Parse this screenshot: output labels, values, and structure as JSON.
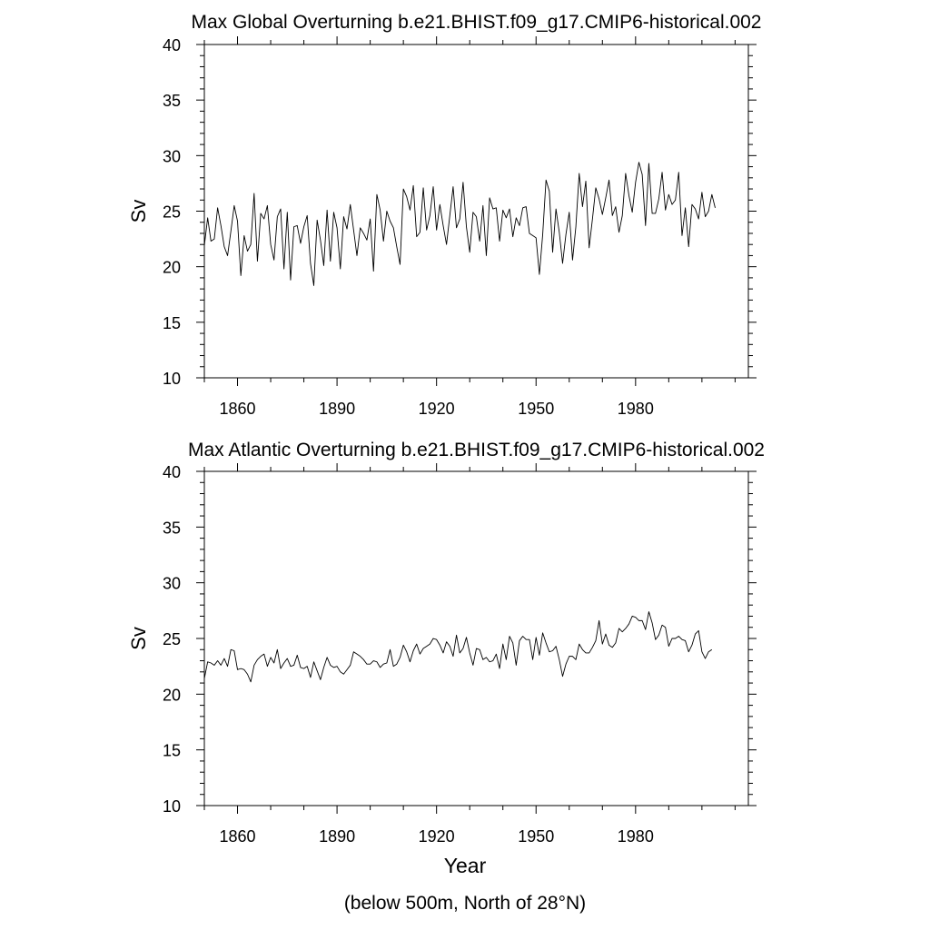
{
  "chart_data": [
    {
      "type": "line",
      "title": "Max Global Overturning b.e21.BHIST.f09_g17.CMIP6-historical.002",
      "xlabel": "",
      "ylabel": "Sv",
      "xlim": [
        1850,
        2014
      ],
      "ylim": [
        10,
        40
      ],
      "xticks": [
        1860,
        1890,
        1920,
        1950,
        1980
      ],
      "yticks": [
        10,
        15,
        20,
        25,
        30,
        35,
        40
      ],
      "grid": false,
      "x_start": 1850,
      "x_step": 1,
      "series": [
        {
          "name": "Max Global Overturning",
          "color": "#000000",
          "values": [
            21.9,
            24.4,
            22.3,
            22.5,
            25.3,
            23.7,
            21.8,
            21.0,
            23.2,
            25.5,
            24.1,
            19.2,
            22.8,
            21.4,
            22.0,
            26.6,
            20.5,
            24.8,
            24.3,
            25.5,
            22.0,
            20.6,
            24.5,
            25.2,
            19.8,
            24.9,
            18.8,
            23.6,
            23.7,
            22.1,
            23.6,
            24.6,
            20.3,
            18.3,
            24.2,
            22.4,
            20.1,
            25.1,
            20.5,
            24.9,
            23.5,
            19.8,
            24.5,
            23.4,
            25.6,
            23.3,
            21.0,
            23.5,
            23.0,
            22.4,
            24.3,
            19.6,
            26.5,
            25.1,
            22.3,
            25.0,
            24.1,
            23.5,
            21.8,
            20.2,
            27.0,
            26.3,
            25.1,
            27.3,
            22.7,
            23.1,
            27.1,
            23.3,
            24.6,
            27.2,
            23.3,
            25.6,
            23.7,
            22.0,
            24.6,
            27.2,
            23.5,
            24.3,
            27.6,
            23.6,
            21.3,
            24.9,
            24.5,
            22.3,
            25.5,
            21.0,
            26.2,
            25.2,
            25.3,
            22.3,
            25.1,
            24.4,
            25.2,
            22.7,
            24.4,
            23.7,
            25.3,
            25.4,
            23.0,
            22.8,
            22.6,
            19.3,
            22.9,
            27.8,
            26.8,
            21.3,
            25.2,
            23.1,
            20.3,
            22.9,
            24.9,
            20.6,
            23.6,
            28.4,
            25.4,
            27.7,
            21.7,
            24.3,
            27.1,
            26.1,
            24.7,
            26.2,
            27.8,
            24.6,
            25.4,
            23.1,
            24.6,
            28.4,
            26.4,
            24.9,
            27.6,
            29.4,
            28.3,
            23.7,
            29.3,
            24.8,
            24.8,
            26.1,
            28.5,
            25.1,
            26.5,
            25.6,
            26.0,
            28.5,
            22.8,
            25.3,
            21.8,
            25.6,
            25.2,
            24.3,
            26.7,
            24.5,
            25.0,
            26.5,
            25.3
          ]
        }
      ]
    },
    {
      "type": "line",
      "title": "Max Atlantic Overturning b.e21.BHIST.f09_g17.CMIP6-historical.002",
      "xlabel": "Year",
      "ylabel": "Sv",
      "xlim": [
        1850,
        2014
      ],
      "ylim": [
        10,
        40
      ],
      "xticks": [
        1860,
        1890,
        1920,
        1950,
        1980
      ],
      "yticks": [
        10,
        15,
        20,
        25,
        30,
        35,
        40
      ],
      "grid": false,
      "x_start": 1850,
      "x_step": 1,
      "series": [
        {
          "name": "Max Atlantic Overturning",
          "color": "#000000",
          "values": [
            21.4,
            22.9,
            22.8,
            22.6,
            23.0,
            22.6,
            23.2,
            22.5,
            24.0,
            23.9,
            22.2,
            22.3,
            22.2,
            21.8,
            21.1,
            22.6,
            23.1,
            23.4,
            23.6,
            22.5,
            23.3,
            22.8,
            24.0,
            22.3,
            22.8,
            23.2,
            22.5,
            22.6,
            23.5,
            22.4,
            22.3,
            22.5,
            21.5,
            22.9,
            22.1,
            21.3,
            22.4,
            23.3,
            22.6,
            22.4,
            22.5,
            22.0,
            21.8,
            22.2,
            22.6,
            23.8,
            23.6,
            23.4,
            23.1,
            22.7,
            22.7,
            23.0,
            22.9,
            22.4,
            22.7,
            22.8,
            24.0,
            22.5,
            22.7,
            23.3,
            24.4,
            23.8,
            22.9,
            23.9,
            24.5,
            23.6,
            24.1,
            24.3,
            24.5,
            25.0,
            24.9,
            24.4,
            23.7,
            24.7,
            24.3,
            23.4,
            25.3,
            23.7,
            24.1,
            25.1,
            23.7,
            22.6,
            24.1,
            24.0,
            23.1,
            23.3,
            22.9,
            23.0,
            23.6,
            22.3,
            24.5,
            23.1,
            25.2,
            24.6,
            22.6,
            24.8,
            25.2,
            24.9,
            24.9,
            23.1,
            25.1,
            23.5,
            25.5,
            24.6,
            23.8,
            23.9,
            24.3,
            23.1,
            21.6,
            22.7,
            23.4,
            23.4,
            23.1,
            24.5,
            24.0,
            23.7,
            23.7,
            24.2,
            24.8,
            26.6,
            24.5,
            25.4,
            24.4,
            24.2,
            24.6,
            25.9,
            25.6,
            25.9,
            26.3,
            27.0,
            26.9,
            26.6,
            26.6,
            25.8,
            27.4,
            26.4,
            24.9,
            25.3,
            26.2,
            26.0,
            24.3,
            25.0,
            25.0,
            25.2,
            24.9,
            24.8,
            23.8,
            24.4,
            25.4,
            25.7,
            23.8,
            23.2,
            23.8,
            24.0
          ]
        }
      ]
    }
  ],
  "labels": {
    "xaxis_title": "Year",
    "note": "(below 500m, North of 28°N)"
  }
}
